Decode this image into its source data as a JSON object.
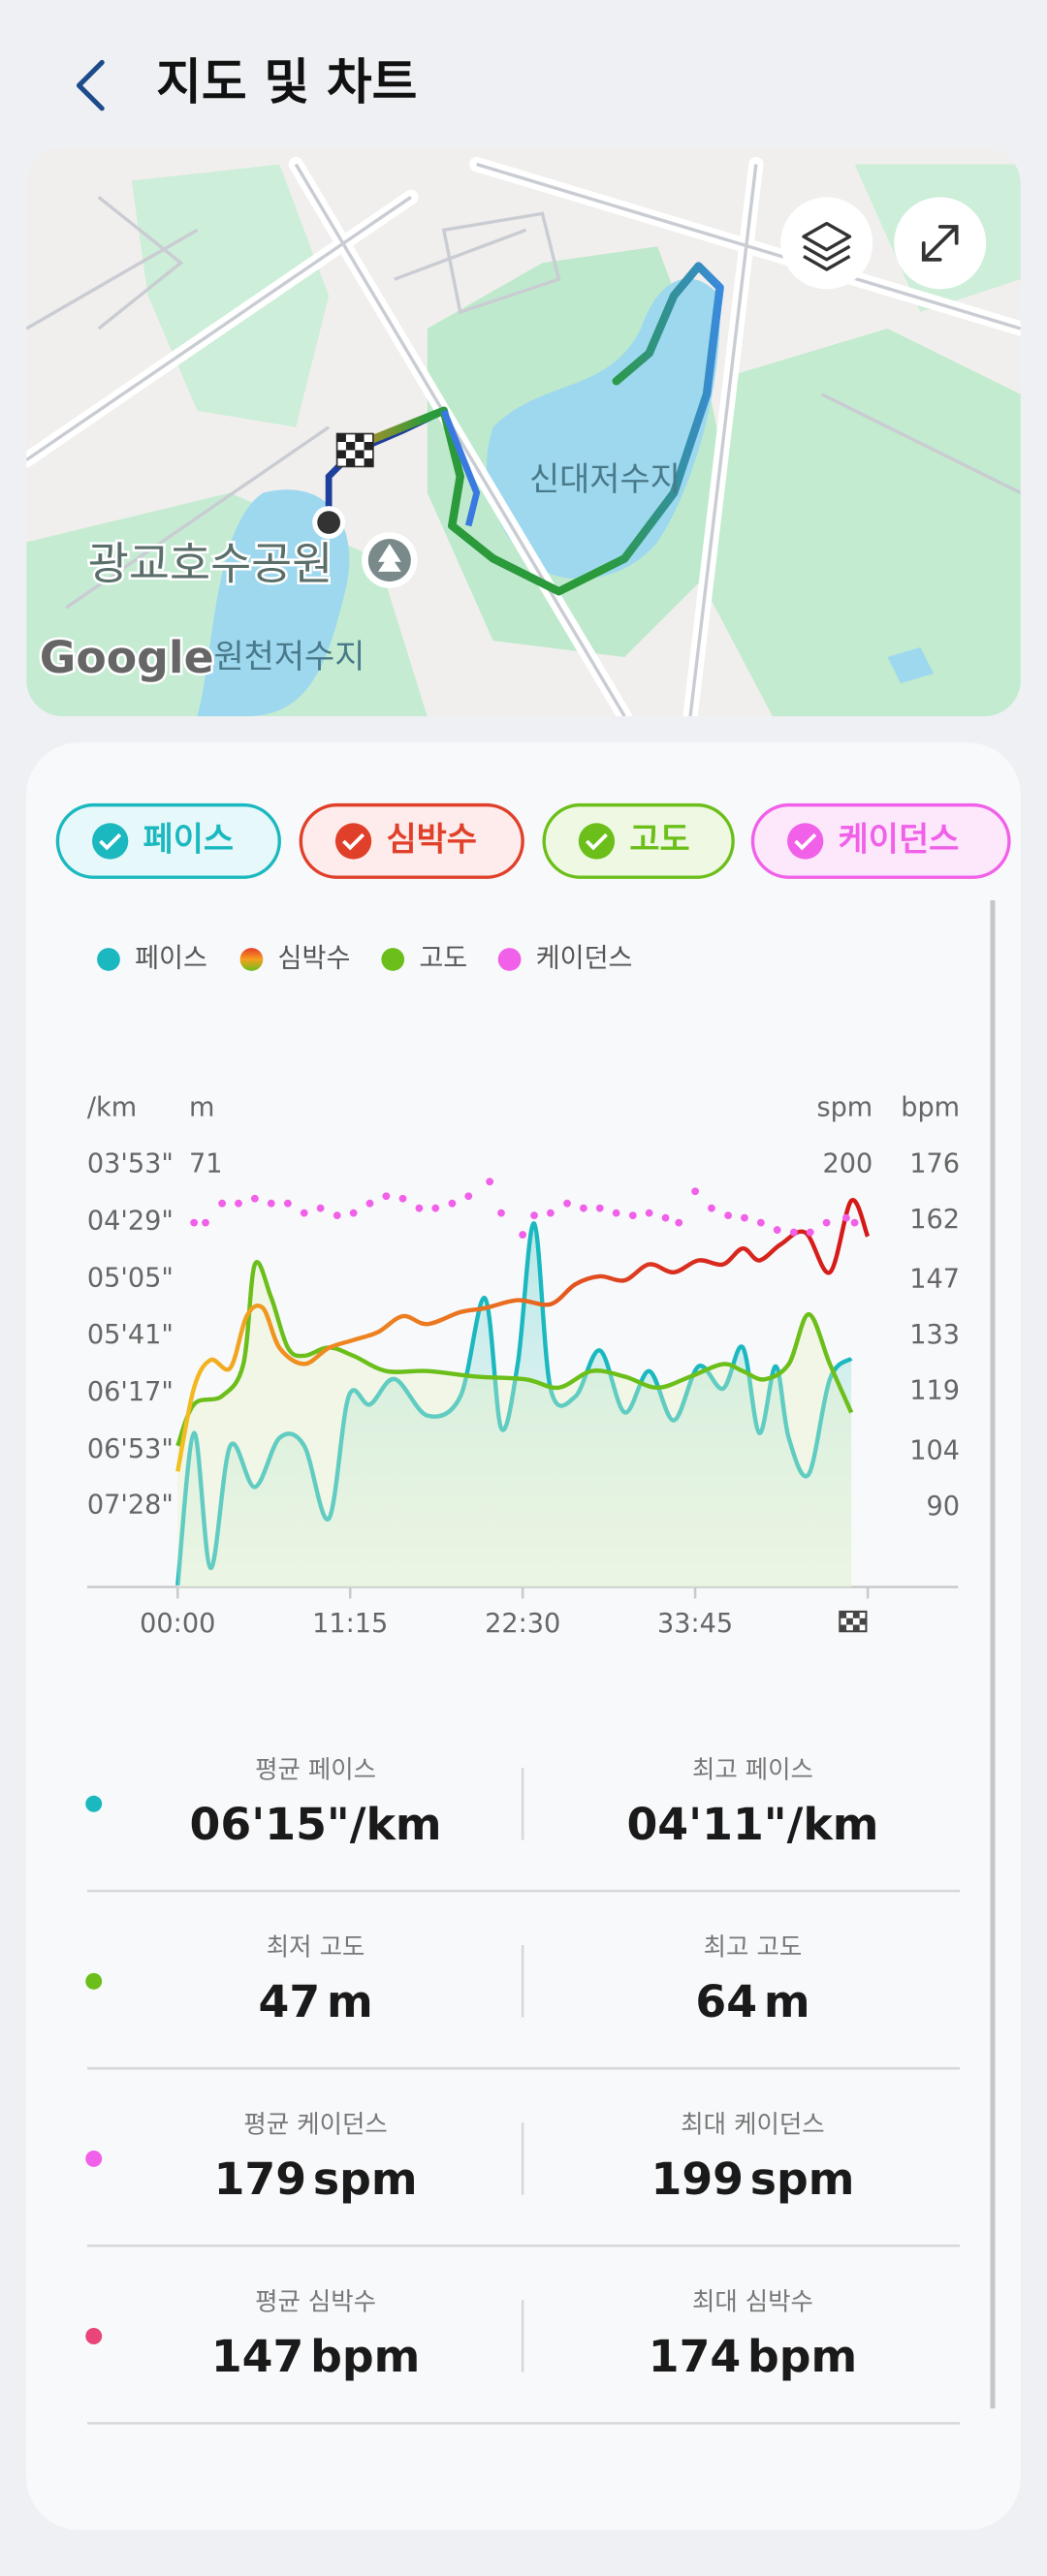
{
  "header": {
    "title": "지도 및 차트"
  },
  "map": {
    "labels": [
      "신대저수지",
      "광교호수공원",
      "원천저수지"
    ],
    "attribution": "Google"
  },
  "chart_data": {
    "type": "line",
    "xlim": [
      -354,
      3054
    ],
    "xticks": [
      {
        "value": 0,
        "label": "00:00"
      },
      {
        "value": 675,
        "label": "11:15"
      },
      {
        "value": 1350,
        "label": "22:30"
      },
      {
        "value": 2025,
        "label": "33:45"
      }
    ],
    "axes": {
      "pace": {
        "unit": "/km",
        "ylim": [
          499,
          233
        ],
        "yticks": [
          {
            "value": 233,
            "label": "03'53\""
          },
          {
            "value": 269,
            "label": "04'29\""
          },
          {
            "value": 305,
            "label": "05'05\""
          },
          {
            "value": 341,
            "label": "05'41\""
          },
          {
            "value": 377,
            "label": "06'17\""
          },
          {
            "value": 413,
            "label": "06'53\""
          },
          {
            "value": 448,
            "label": "07'28\""
          }
        ]
      },
      "elevation": {
        "unit": "m",
        "ylim": [
          40.5,
          71
        ],
        "yticks": [
          71
        ]
      },
      "cadence": {
        "unit": "spm",
        "ylim": [
          25,
          200
        ],
        "yticks": [
          200
        ]
      },
      "heart_rate": {
        "unit": "bpm",
        "ylim": [
          70,
          176
        ],
        "yticks": [
          176,
          162,
          147,
          133,
          119,
          104,
          90
        ]
      }
    },
    "series": [
      {
        "name": "페이스",
        "color": "#1bb8c0",
        "axis": "pace",
        "style": "area",
        "x": [
          0,
          64,
          129,
          206,
          302,
          399,
          495,
          591,
          669,
          752,
          849,
          977,
          1106,
          1202,
          1266,
          1331,
          1395,
          1459,
          1556,
          1652,
          1749,
          1845,
          1941,
          2038,
          2134,
          2211,
          2276,
          2340,
          2391,
          2469,
          2552,
          2636
        ],
        "values": [
          498,
          402,
          487,
          410,
          436,
          405,
          410,
          456,
          379,
          384,
          368,
          391,
          379,
          317,
          399,
          358,
          270,
          374,
          379,
          350,
          389,
          363,
          394,
          360,
          374,
          348,
          402,
          360,
          405,
          428,
          368,
          355
        ]
      },
      {
        "name": "심박수",
        "color": "#e0402a",
        "axis": "heart_rate",
        "style": "gradient-line",
        "x": [
          0,
          64,
          129,
          206,
          270,
          334,
          399,
          495,
          591,
          688,
          784,
          881,
          977,
          1106,
          1202,
          1331,
          1459,
          1556,
          1652,
          1749,
          1845,
          1941,
          2038,
          2134,
          2211,
          2276,
          2359,
          2456,
          2552,
          2636,
          2700
        ],
        "values": [
          99,
          120,
          127,
          125,
          138,
          140,
          130,
          126,
          130,
          132,
          134,
          138,
          136,
          139,
          140,
          142,
          141,
          146,
          148,
          147,
          151,
          149,
          152,
          151,
          155,
          152,
          156,
          159,
          149,
          167,
          158
        ]
      },
      {
        "name": "고도",
        "color": "#6cbf1a",
        "axis": "elevation",
        "style": "line",
        "x": [
          0,
          64,
          174,
          257,
          302,
          366,
          431,
          495,
          591,
          688,
          816,
          977,
          1170,
          1363,
          1491,
          1620,
          1749,
          1877,
          2006,
          2134,
          2211,
          2295,
          2391,
          2469,
          2552,
          2636
        ],
        "values": [
          50.7,
          53.7,
          54.3,
          56.6,
          63.8,
          61.4,
          57.8,
          57.2,
          57.8,
          57.2,
          56.1,
          56.1,
          55.7,
          55.5,
          54.9,
          56.1,
          55.7,
          54.9,
          55.7,
          56.6,
          56.1,
          55.5,
          56.6,
          60.2,
          56.6,
          53.1
        ]
      },
      {
        "name": "케이던스",
        "color": "#f060e8",
        "axis": "cadence",
        "style": "dots",
        "x": [
          64,
          109,
          174,
          238,
          302,
          366,
          431,
          495,
          559,
          624,
          688,
          752,
          816,
          881,
          945,
          1009,
          1074,
          1138,
          1221,
          1266,
          1350,
          1395,
          1459,
          1524,
          1588,
          1652,
          1716,
          1781,
          1845,
          1909,
          1961,
          2025,
          2089,
          2154,
          2218,
          2282,
          2346,
          2411,
          2475,
          2539,
          2616,
          2649
        ],
        "values": [
          176,
          176,
          184,
          184,
          186,
          184,
          184,
          180,
          182,
          179,
          180,
          184,
          187,
          186,
          182,
          182,
          184,
          187,
          193,
          180,
          171,
          179,
          180,
          184,
          182,
          182,
          180,
          179,
          180,
          178,
          176,
          189,
          182,
          179,
          178,
          176,
          173,
          172,
          172,
          176,
          178,
          176
        ]
      }
    ]
  },
  "stats": [
    {
      "marker_color": "#1bb8c0",
      "items": [
        {
          "label": "평균 페이스",
          "value": "06'15\"",
          "unit": "/km"
        },
        {
          "label": "최고 페이스",
          "value": "04'11\"",
          "unit": "/km"
        }
      ]
    },
    {
      "marker_color": "#6cbf1a",
      "items": [
        {
          "label": "최저 고도",
          "value": "47",
          "unit": "m"
        },
        {
          "label": "최고 고도",
          "value": "64",
          "unit": "m"
        }
      ]
    },
    {
      "marker_color": "#f060e8",
      "items": [
        {
          "label": "평균 케이던스",
          "value": "179",
          "unit": "spm"
        },
        {
          "label": "최대 케이던스",
          "value": "199",
          "unit": "spm"
        }
      ]
    },
    {
      "marker_color": "#e8457a",
      "items": [
        {
          "label": "평균 심박수",
          "value": "147",
          "unit": "bpm"
        },
        {
          "label": "최대 심박수",
          "value": "174",
          "unit": "bpm"
        }
      ]
    }
  ]
}
